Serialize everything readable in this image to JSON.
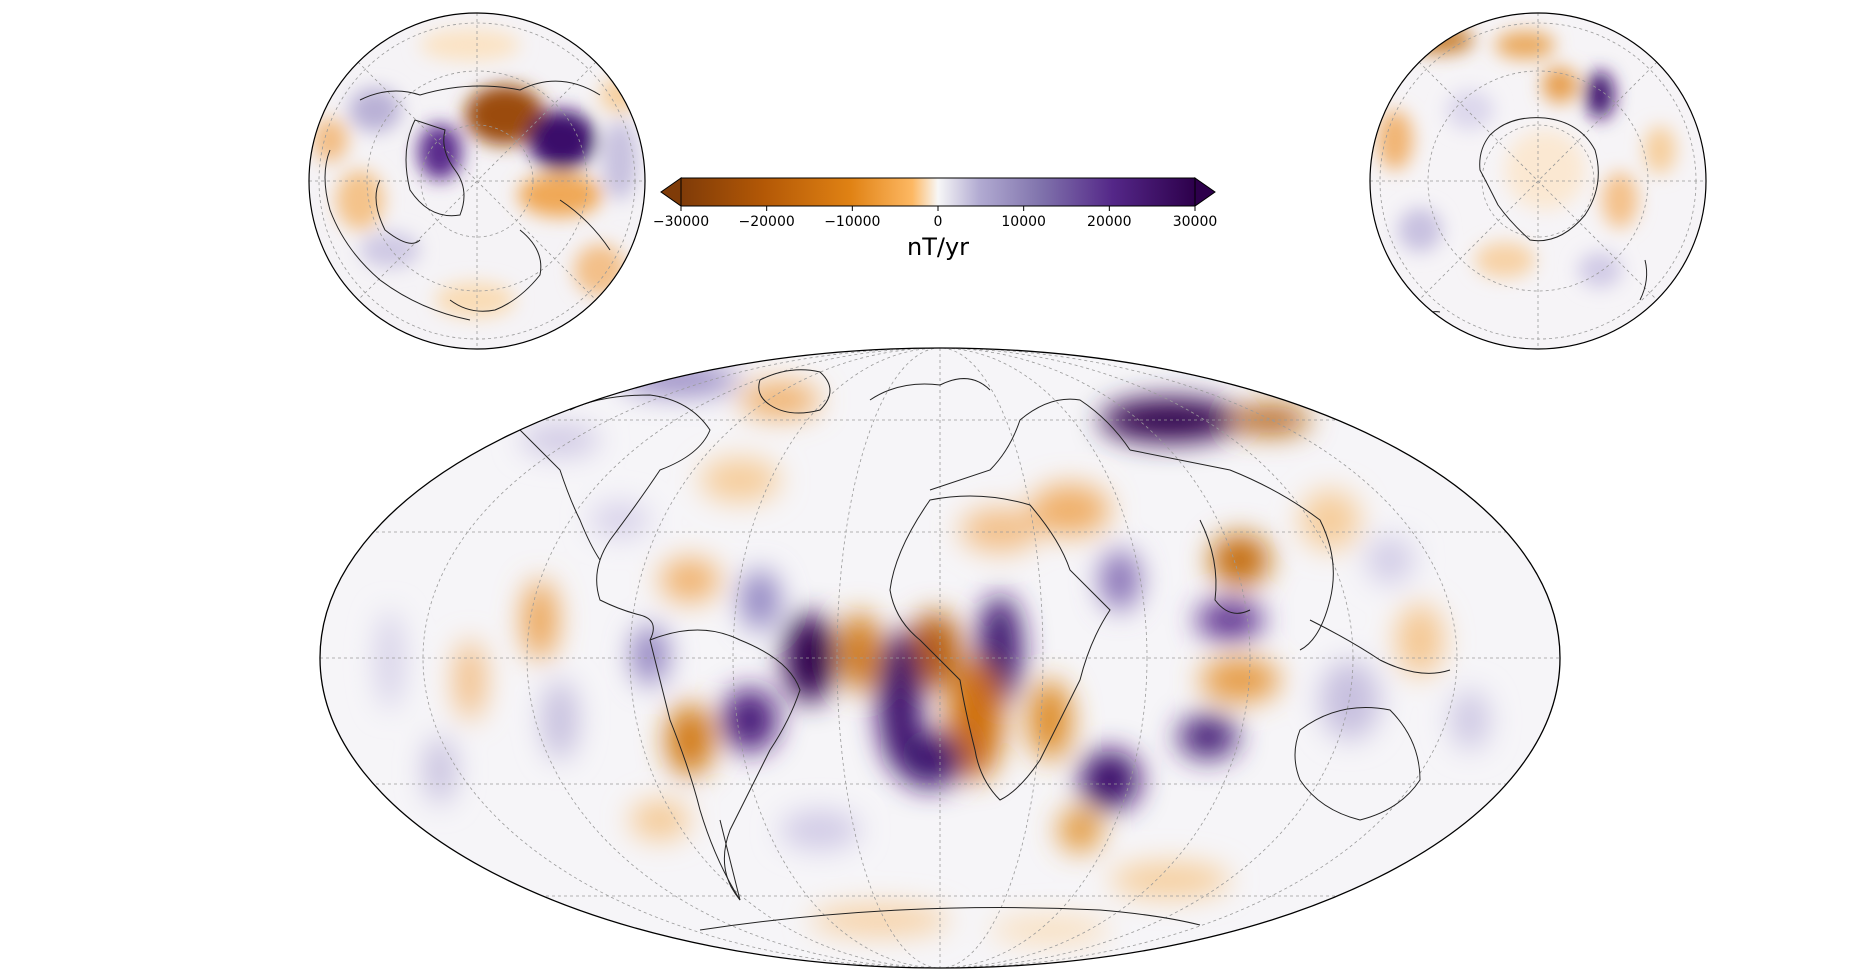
{
  "colorbar": {
    "unit_label": "nT/yr",
    "ticks": [
      "−30000",
      "−20000",
      "−10000",
      "0",
      "10000",
      "20000",
      "30000"
    ],
    "tick_values": [
      -30000,
      -20000,
      -10000,
      0,
      10000,
      20000,
      30000
    ],
    "range": [
      -30000,
      30000
    ],
    "extend": "both",
    "colormap": "PuOr",
    "colors": {
      "min": "#7f3b08",
      "orange": "#e08214",
      "light_orange": "#fdb863",
      "mid": "#f7f7f7",
      "light_purple": "#b2abd2",
      "purple": "#542788",
      "max": "#2d004b"
    }
  },
  "maps": [
    {
      "name": "north-polar-view",
      "projection": "orthographic",
      "center": "north pole"
    },
    {
      "name": "south-polar-view",
      "projection": "orthographic",
      "center": "south pole"
    },
    {
      "name": "global-view",
      "projection": "mollweide",
      "center": "0° longitude"
    }
  ]
}
